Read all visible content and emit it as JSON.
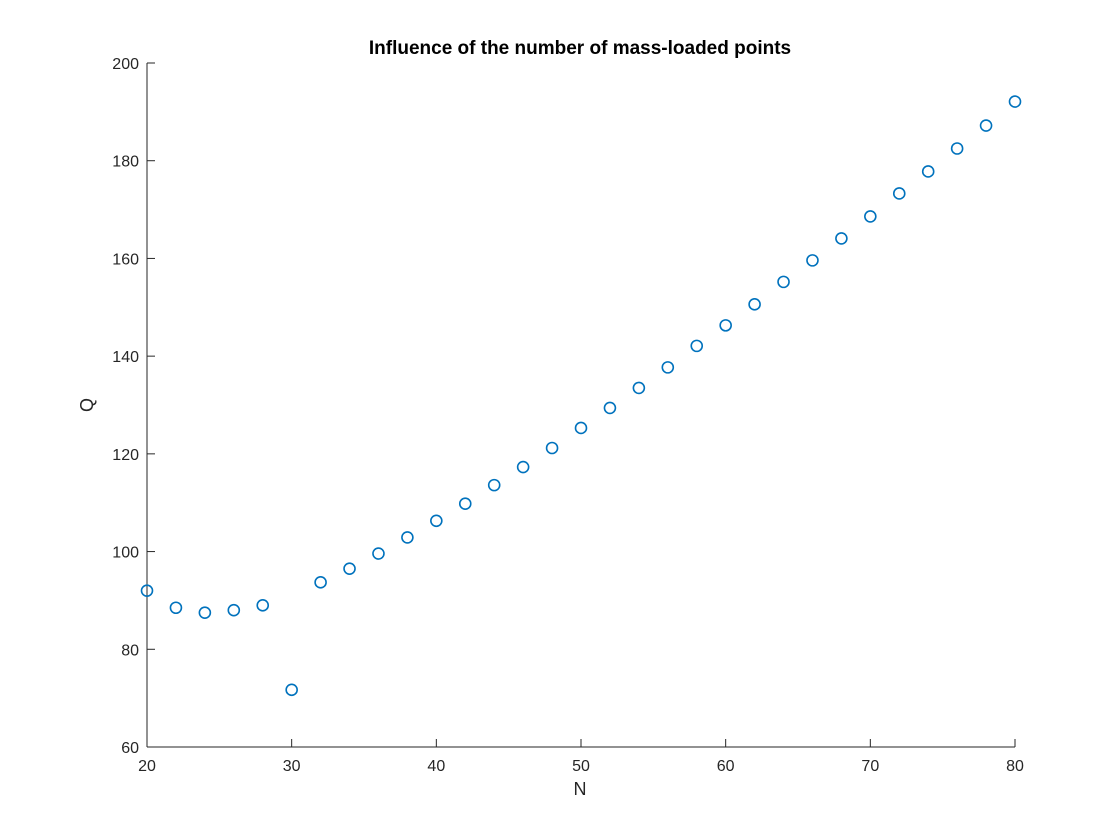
{
  "chart_data": {
    "type": "scatter",
    "title": "Influence of the number of mass-loaded points",
    "xlabel": "N",
    "ylabel": "Q",
    "xlim": [
      20,
      80
    ],
    "ylim": [
      60,
      200
    ],
    "xticks": [
      "20",
      "30",
      "40",
      "50",
      "60",
      "70",
      "80"
    ],
    "yticks": [
      "60",
      "80",
      "100",
      "120",
      "140",
      "160",
      "180",
      "200"
    ],
    "grid": false,
    "legend": "none",
    "marker": "circle-open",
    "color": "#0072BD",
    "series": [
      {
        "x": [
          20,
          22,
          24,
          26,
          28,
          30,
          32,
          34,
          36,
          38,
          40,
          42,
          44,
          46,
          48,
          50,
          52,
          54,
          56,
          58,
          60,
          62,
          64,
          66,
          68,
          70,
          72,
          74,
          76,
          78,
          80
        ],
        "y": [
          92.0,
          88.5,
          87.5,
          88.0,
          89.0,
          71.7,
          93.7,
          96.5,
          99.6,
          102.9,
          106.3,
          109.8,
          113.6,
          117.3,
          121.2,
          125.3,
          129.4,
          133.5,
          137.7,
          142.1,
          146.3,
          150.6,
          155.2,
          159.6,
          164.1,
          168.6,
          173.3,
          177.8,
          182.5,
          187.2,
          192.1
        ]
      }
    ]
  }
}
